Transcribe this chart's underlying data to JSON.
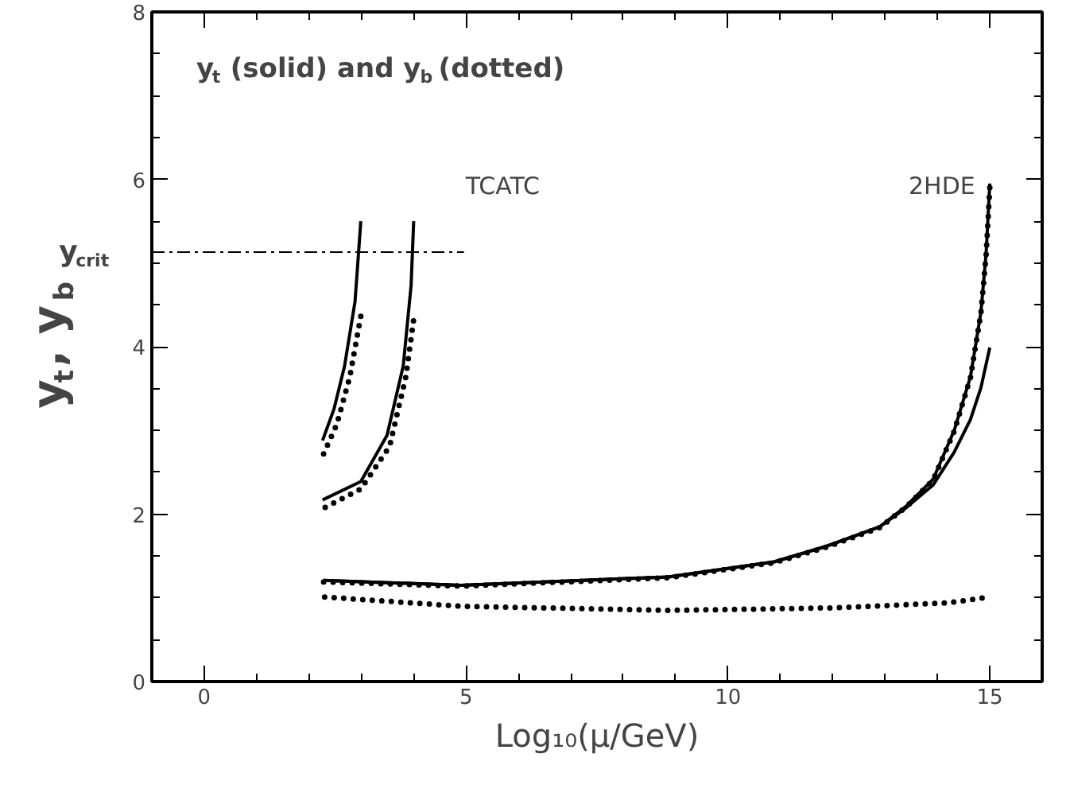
{
  "chart_data": {
    "type": "line",
    "xlabel": "Log₁₀(μ/GeV)",
    "ylabel": "y$_{t}$, y$_{b}$",
    "xlim": [
      -1,
      16
    ],
    "ylim": [
      0,
      8
    ],
    "xticks": [
      0,
      5,
      10,
      15
    ],
    "yticks": [
      0,
      2,
      4,
      6,
      8
    ],
    "grid": false,
    "marker": "none",
    "annotations": [
      "y$_{t}$ (solid) and y$_{b}$ (dotted)",
      "TCATC",
      "2HDE",
      {
        "text": "y$_{crit}$",
        "x": -1,
        "y": 5.13
      }
    ],
    "series": [
      {
        "color": "#000000",
        "line_style": "solid",
        "x": [
          2.26,
          2.48,
          2.68,
          2.88,
          2.99
        ],
        "values": [
          2.88,
          3.26,
          3.77,
          4.54,
          5.5
        ]
      },
      {
        "color": "#000000",
        "line_style": "dotted",
        "x": [
          2.28,
          2.53,
          2.78,
          3.02
        ],
        "values": [
          2.72,
          3.07,
          3.64,
          4.47
        ]
      },
      {
        "color": "#000000",
        "line_style": "solid",
        "x": [
          2.26,
          2.99,
          3.49,
          3.8,
          3.95,
          4.0
        ],
        "values": [
          2.17,
          2.39,
          2.94,
          3.77,
          4.73,
          5.5
        ]
      },
      {
        "color": "#000000",
        "line_style": "dotted",
        "x": [
          2.31,
          2.99,
          3.54,
          3.85,
          4.02
        ],
        "values": [
          2.08,
          2.3,
          2.81,
          3.64,
          4.42
        ]
      },
      {
        "color": "#000000",
        "line_style": "solid",
        "x": [
          2.28,
          4.9,
          8.86,
          10.88,
          11.9,
          12.9,
          13.41,
          13.92,
          14.32,
          14.63,
          14.83,
          14.93,
          15.0
        ],
        "values": [
          1.21,
          1.15,
          1.25,
          1.43,
          1.62,
          1.85,
          2.1,
          2.42,
          3.0,
          3.64,
          4.41,
          5.12,
          5.95
        ]
      },
      {
        "color": "#000000",
        "line_style": "dotted",
        "x": [
          2.28,
          4.9,
          8.86,
          10.88,
          11.9,
          12.9,
          13.41,
          13.92,
          14.32,
          14.63,
          14.83,
          14.93,
          15.0
        ],
        "values": [
          1.19,
          1.14,
          1.24,
          1.42,
          1.61,
          1.84,
          2.09,
          2.41,
          2.99,
          3.63,
          4.4,
          5.1,
          5.9
        ]
      },
      {
        "color": "#000000",
        "line_style": "solid",
        "x": [
          2.28,
          4.9,
          8.86,
          10.88,
          11.9,
          12.9,
          13.41,
          13.92,
          14.32,
          14.63,
          14.83,
          15.0
        ],
        "values": [
          1.21,
          1.15,
          1.25,
          1.43,
          1.62,
          1.85,
          2.08,
          2.35,
          2.74,
          3.13,
          3.51,
          3.99
        ]
      },
      {
        "color": "#000000",
        "line_style": "dotted",
        "x": [
          2.3,
          4.9,
          8.86,
          12.0,
          14.2,
          15.0
        ],
        "values": [
          1.01,
          0.9,
          0.85,
          0.88,
          0.94,
          1.01
        ]
      },
      {
        "color": "#000000",
        "line_style": "dashdot",
        "x": [
          -1,
          4.96
        ],
        "values": [
          5.13,
          5.13
        ]
      }
    ]
  }
}
